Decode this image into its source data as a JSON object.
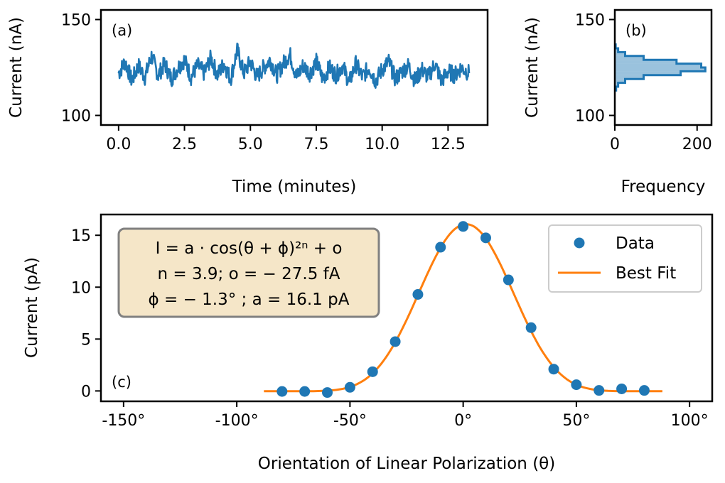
{
  "chart_data": [
    {
      "panel": "(a)",
      "type": "line",
      "xlabel": "Time (minutes)",
      "ylabel": "Current (nA)",
      "xlim": [
        -0.67,
        14.0
      ],
      "ylim": [
        95,
        155
      ],
      "xticks": [
        0,
        2.5,
        5,
        7.5,
        10,
        12.5
      ],
      "xtick_labels": [
        "0.0",
        "2.5",
        "5.0",
        "7.5",
        "10.0",
        "12.5"
      ],
      "yticks": [
        100,
        150
      ],
      "ytick_labels": [
        "100",
        "150"
      ],
      "series": [
        {
          "name": "current",
          "color": "#1f77b4",
          "x": [
            0.0,
            0.25,
            0.5,
            0.75,
            1.0,
            1.25,
            1.5,
            1.75,
            2.0,
            2.25,
            2.5,
            2.75,
            3.0,
            3.25,
            3.5,
            3.75,
            4.0,
            4.25,
            4.5,
            4.75,
            5.0,
            5.25,
            5.5,
            5.75,
            6.0,
            6.25,
            6.5,
            6.75,
            7.0,
            7.25,
            7.5,
            7.75,
            8.0,
            8.25,
            8.5,
            8.75,
            9.0,
            9.25,
            9.5,
            9.75,
            10.0,
            10.25,
            10.5,
            10.75,
            11.0,
            11.25,
            11.5,
            11.75,
            12.0,
            12.25,
            12.5,
            12.75,
            13.0,
            13.3
          ],
          "y": [
            122,
            128,
            118,
            126,
            120,
            131,
            121,
            127,
            119,
            125,
            129,
            120,
            126,
            122,
            130,
            121,
            127,
            119,
            134,
            122,
            128,
            120,
            125,
            129,
            121,
            127,
            132,
            120,
            126,
            122,
            128,
            119,
            125,
            121,
            126,
            117,
            127,
            120,
            125,
            118,
            124,
            128,
            119,
            123,
            126,
            118,
            124,
            120,
            127,
            118,
            123,
            121,
            125,
            122
          ]
        }
      ]
    },
    {
      "panel": "(b)",
      "type": "bar",
      "orientation": "horizontal",
      "histtype": "stepfilled",
      "xlabel": "Frequency",
      "ylabel": "Current (nA)",
      "xlim": [
        0,
        235
      ],
      "ylim": [
        95,
        155
      ],
      "xticks": [
        0,
        200
      ],
      "xtick_labels": [
        "0",
        "200"
      ],
      "yticks": [
        100,
        150
      ],
      "ytick_labels": [
        "100",
        "150"
      ],
      "categories": [
        114,
        116,
        118,
        120,
        122,
        124,
        126,
        128,
        130,
        132,
        134,
        136
      ],
      "values": [
        3,
        8,
        25,
        70,
        160,
        220,
        210,
        150,
        70,
        25,
        8,
        2
      ],
      "color": "#1f77b4"
    },
    {
      "panel": "(c)",
      "type": "scatter",
      "xlabel": "Orientation of Linear Polarization (θ)",
      "ylabel": "Current (pA)",
      "xlim": [
        -160,
        110
      ],
      "ylim": [
        -1.0,
        17.0
      ],
      "xticks": [
        -150,
        -100,
        -50,
        0,
        50,
        100
      ],
      "xtick_labels": [
        "-150°",
        "-100°",
        "-50°",
        "0°",
        "50°",
        "100°"
      ],
      "yticks": [
        0,
        5,
        10,
        15
      ],
      "ytick_labels": [
        "0",
        "5",
        "10",
        "15"
      ],
      "series": [
        {
          "name": "Data",
          "color": "#1f77b4",
          "x": [
            -80,
            -70,
            -60,
            -50,
            -40,
            -30,
            -20,
            -10,
            0,
            10,
            20,
            30,
            40,
            50,
            60,
            70,
            80
          ],
          "y": [
            -0.05,
            -0.05,
            -0.15,
            0.35,
            1.85,
            4.75,
            9.3,
            13.85,
            15.85,
            14.75,
            10.7,
            6.1,
            2.1,
            0.6,
            0.05,
            0.2,
            0.05
          ]
        },
        {
          "name": "Best Fit",
          "color": "#ff7f0e",
          "model": {
            "a": 16.1,
            "phi_deg": -1.3,
            "n": 3.9,
            "o": -0.0275,
            "x_range": [
              -88,
              88
            ]
          }
        }
      ],
      "legend": {
        "position": "top-right",
        "entries": [
          "Data",
          "Best Fit"
        ]
      },
      "annotation": {
        "line1": "I = a · cos(θ + ϕ)²ⁿ + o",
        "line2": "n = 3.9; o = − 27.5 fA",
        "line3": "ϕ = − 1.3° ; a = 16.1 pA",
        "facecolor": "#f5e6c8",
        "edgecolor": "#808080"
      }
    }
  ]
}
